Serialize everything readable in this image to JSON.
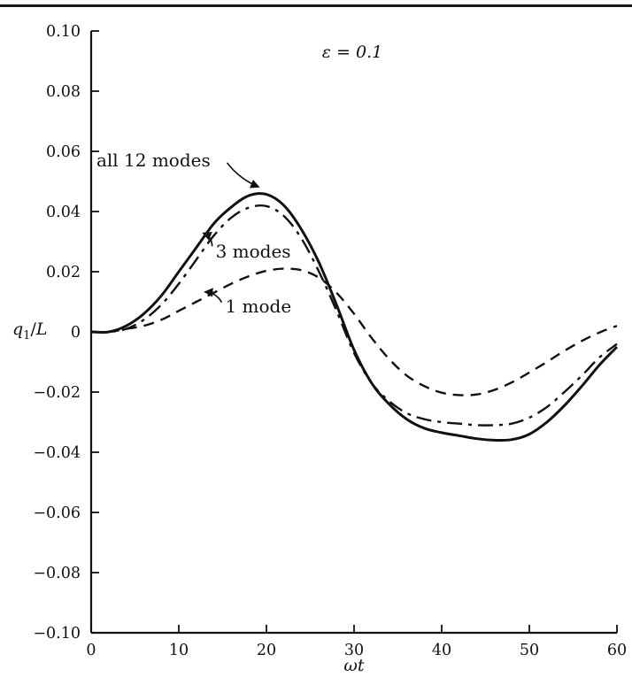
{
  "chart_data": {
    "type": "line",
    "title": "",
    "annotation": "ε = 0.1",
    "xlabel": "ωt",
    "ylabel_parts": {
      "base": "q",
      "sub": "1",
      "sep": "/",
      "denom": "L"
    },
    "xlim": [
      0,
      60
    ],
    "ylim": [
      -0.1,
      0.1
    ],
    "grid": false,
    "xticks": [
      0,
      10,
      20,
      30,
      40,
      50,
      60
    ],
    "xtick_labels": [
      "0",
      "10",
      "20",
      "30",
      "40",
      "50",
      "60"
    ],
    "yticks": [
      0.1,
      0.08,
      0.06,
      0.04,
      0.02,
      0,
      -0.02,
      -0.04,
      -0.06,
      -0.08,
      -0.1
    ],
    "ytick_labels": [
      "0.10",
      "0.08",
      "0.06",
      "0.04",
      "0.02",
      "0",
      "−0.02",
      "−0.04",
      "−0.06",
      "−0.08",
      "−0.10"
    ],
    "series": [
      {
        "name": "all 12 modes",
        "style": "solid",
        "x": [
          0,
          2,
          4,
          6,
          8,
          10,
          12,
          14,
          16,
          18,
          20,
          22,
          24,
          26,
          28,
          30,
          32,
          34,
          36,
          38,
          40,
          42,
          44,
          46,
          48,
          50,
          52,
          54,
          56,
          58,
          60
        ],
        "y": [
          0.0,
          0.0,
          0.002,
          0.006,
          0.012,
          0.02,
          0.028,
          0.036,
          0.0415,
          0.0453,
          0.0457,
          0.042,
          0.034,
          0.023,
          0.009,
          -0.006,
          -0.017,
          -0.024,
          -0.029,
          -0.032,
          -0.0335,
          -0.0345,
          -0.0355,
          -0.036,
          -0.0358,
          -0.034,
          -0.03,
          -0.0245,
          -0.018,
          -0.011,
          -0.005
        ]
      },
      {
        "name": "3 modes",
        "style": "dashdot",
        "x": [
          0,
          2,
          4,
          6,
          8,
          10,
          12,
          14,
          16,
          18,
          20,
          22,
          24,
          26,
          28,
          30,
          32,
          34,
          36,
          38,
          40,
          42,
          44,
          46,
          48,
          50,
          52,
          54,
          56,
          58,
          60
        ],
        "y": [
          0.0,
          0.0,
          0.001,
          0.004,
          0.009,
          0.016,
          0.024,
          0.032,
          0.038,
          0.0413,
          0.0418,
          0.0385,
          0.031,
          0.02,
          0.007,
          -0.007,
          -0.017,
          -0.023,
          -0.027,
          -0.029,
          -0.03,
          -0.0305,
          -0.031,
          -0.031,
          -0.0305,
          -0.0285,
          -0.025,
          -0.02,
          -0.0145,
          -0.0085,
          -0.004
        ]
      },
      {
        "name": "1 mode",
        "style": "dashed",
        "x": [
          0,
          2,
          4,
          6,
          8,
          10,
          12,
          14,
          16,
          18,
          20,
          22,
          24,
          26,
          28,
          30,
          32,
          34,
          36,
          38,
          40,
          42,
          44,
          46,
          48,
          50,
          52,
          54,
          56,
          58,
          60
        ],
        "y": [
          0.0,
          0.0,
          0.001,
          0.002,
          0.004,
          0.007,
          0.01,
          0.013,
          0.016,
          0.0185,
          0.0203,
          0.021,
          0.0205,
          0.018,
          0.013,
          0.006,
          -0.002,
          -0.009,
          -0.0145,
          -0.018,
          -0.0202,
          -0.021,
          -0.0208,
          -0.0193,
          -0.0168,
          -0.0135,
          -0.01,
          -0.0063,
          -0.003,
          -0.0002,
          0.002
        ]
      }
    ],
    "curve_labels": [
      {
        "text": "all 12 modes",
        "x": 0.6,
        "y": 0.057,
        "anchor": "start",
        "arrow_from": {
          "x": 15.5,
          "y": 0.0562
        },
        "arrow_to": {
          "x": 19.1,
          "y": 0.0482
        }
      },
      {
        "text": "3 modes",
        "x": 14.2,
        "y": 0.0268,
        "anchor": "start",
        "arrow_from": {
          "x": 13.8,
          "y": 0.0284
        },
        "arrow_to": {
          "x": 12.8,
          "y": 0.0328
        }
      },
      {
        "text": "1 mode",
        "x": 15.3,
        "y": 0.0085,
        "anchor": "start",
        "arrow_from": {
          "x": 14.9,
          "y": 0.0098
        },
        "arrow_to": {
          "x": 13.0,
          "y": 0.0133
        }
      }
    ]
  }
}
